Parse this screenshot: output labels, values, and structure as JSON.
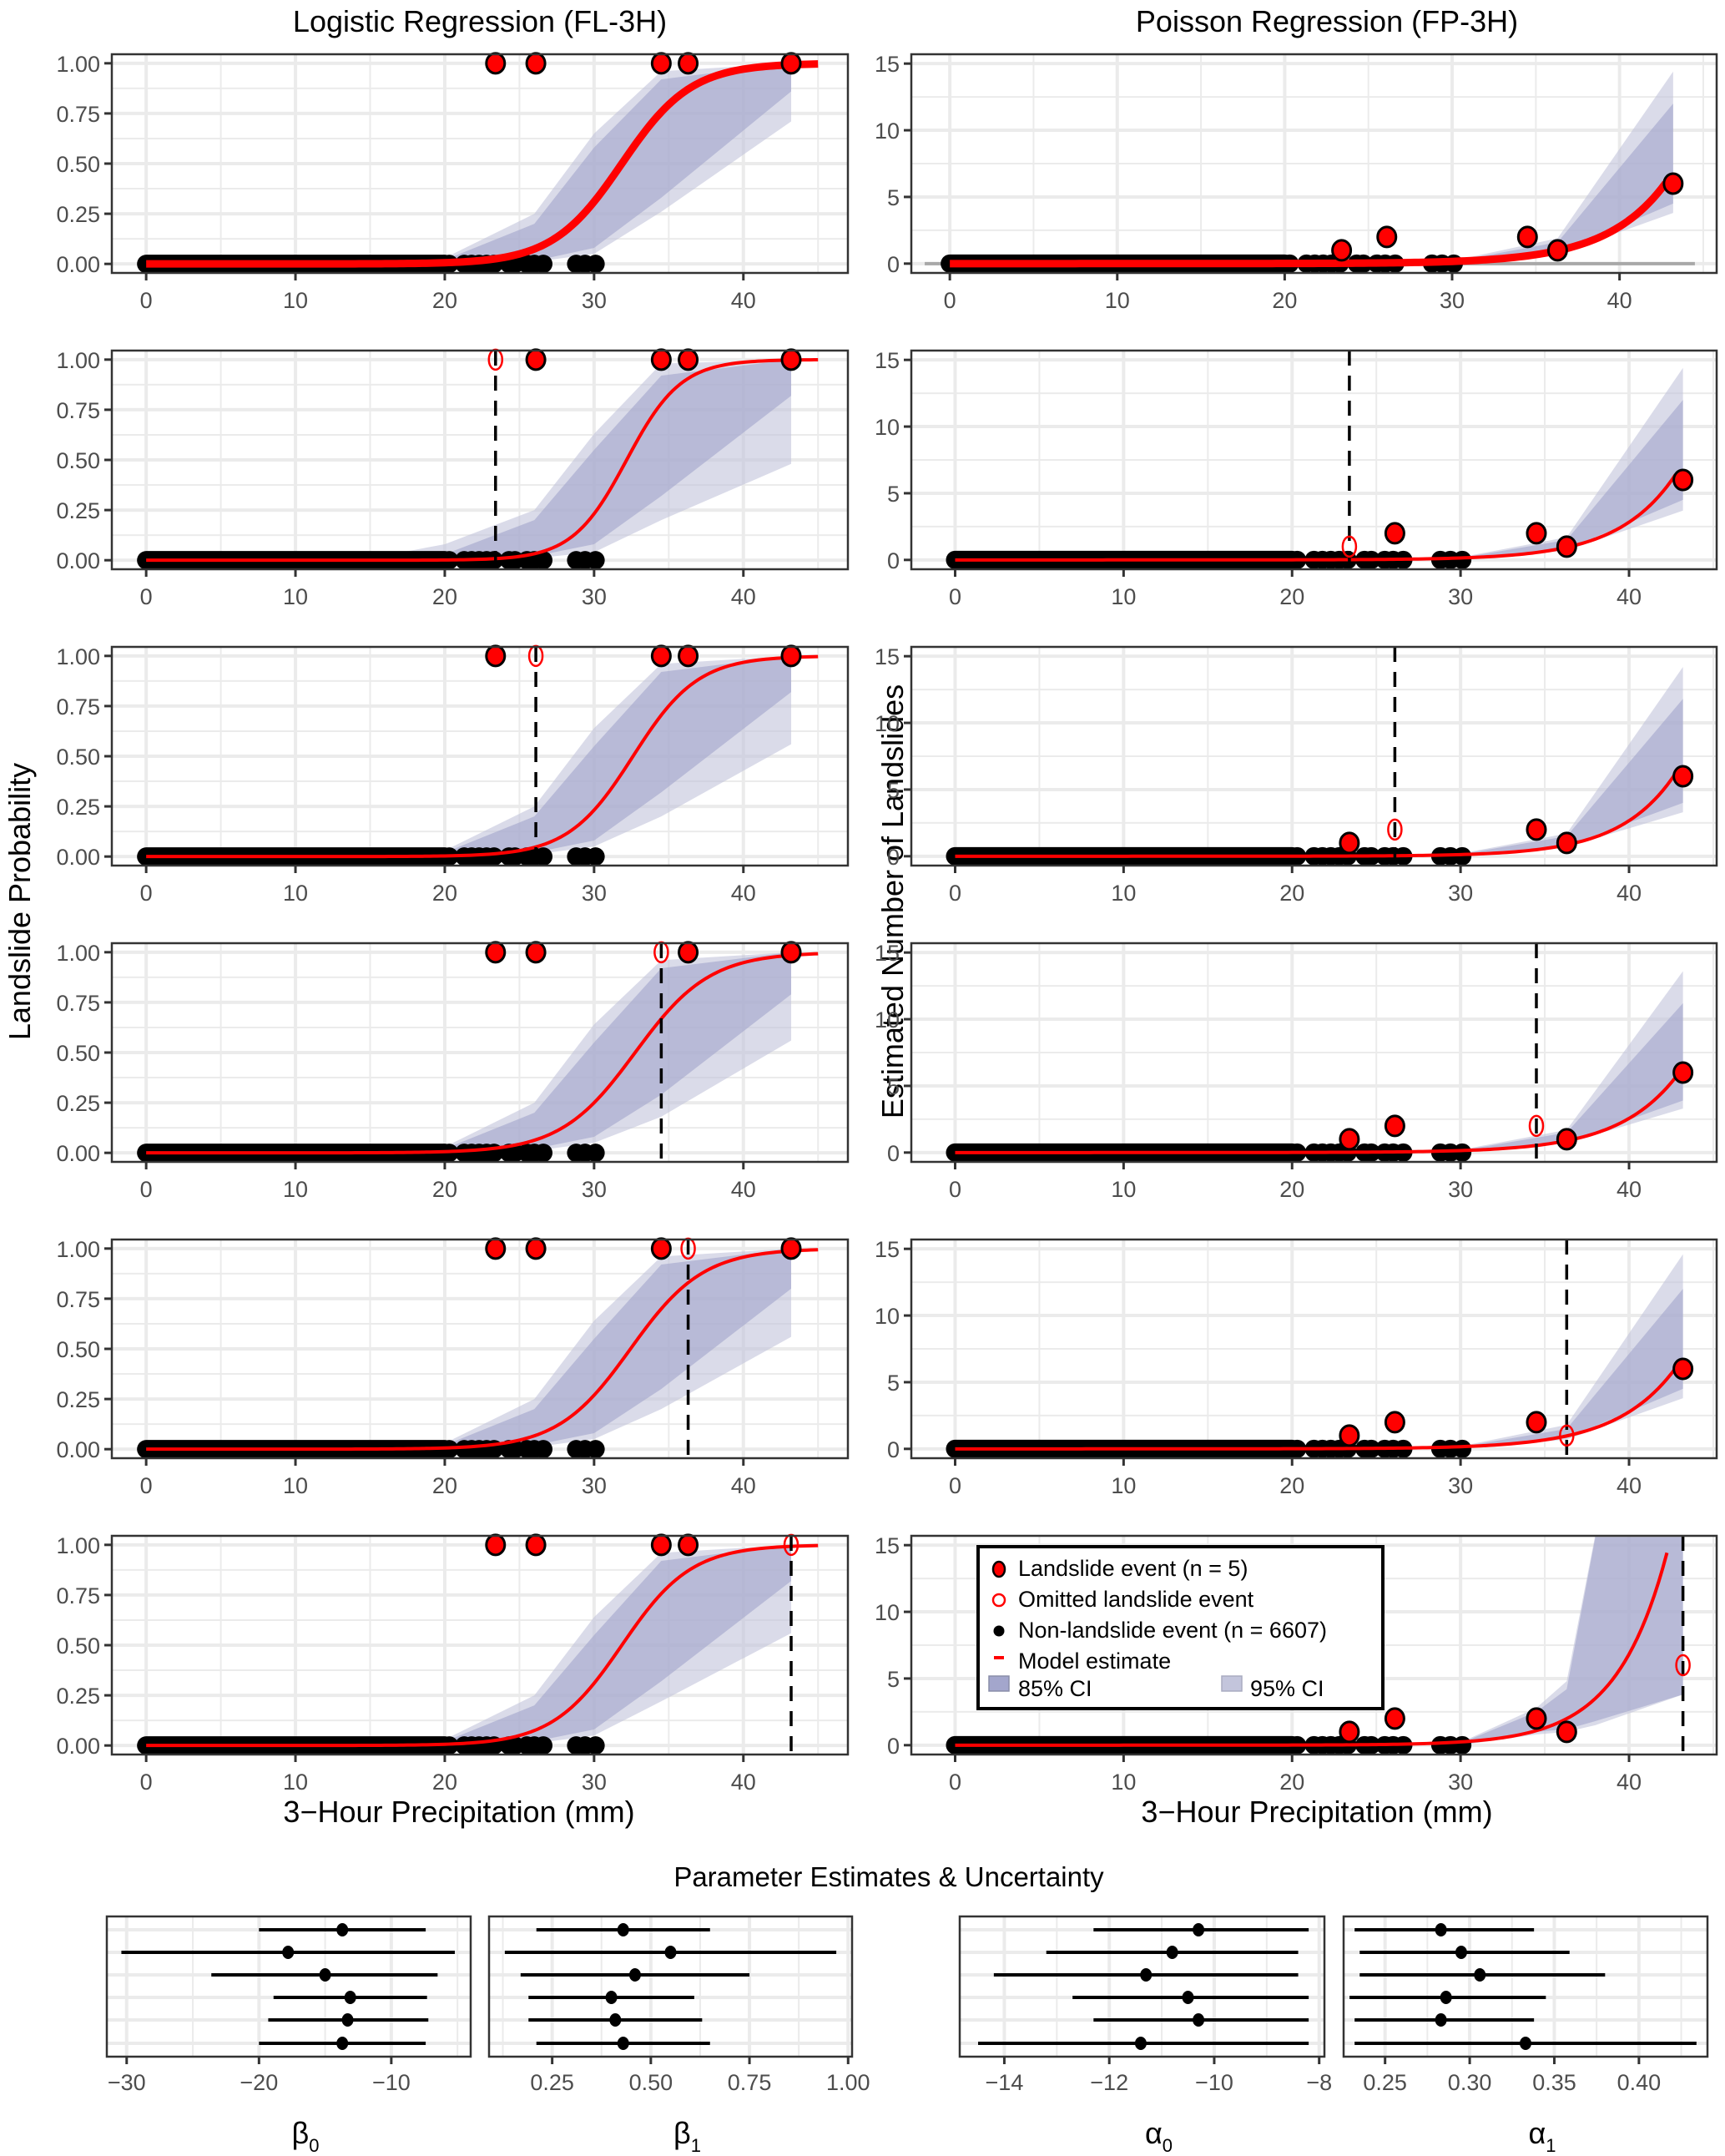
{
  "chart_data": {
    "type": "scatter",
    "figure": {
      "left_column_title": "Logistic Regression (FL-3H)",
      "right_column_title": "Poisson Regression (FP-3H)",
      "left_ylabel": "Landslide Probability",
      "right_ylabel": "Estimated Number of Landslides",
      "xlabel": "3−Hour Precipitation (mm)",
      "bottom_title": "Parameter Estimates & Uncertainty"
    },
    "colors": {
      "landslide": "#ff0000",
      "model": "#ff0000",
      "ci85": "#a3a6cc",
      "ci95": "#c3c5dc",
      "nonlandslide": "#000000",
      "grid": "#ebebeb",
      "reference": "#a8a8a8"
    },
    "x_ticks": [
      0,
      10,
      20,
      30,
      40
    ],
    "logistic_y_ticks": [
      "0.00",
      "0.25",
      "0.50",
      "0.75",
      "1.00"
    ],
    "poisson_y_ticks": [
      "0",
      "5",
      "10",
      "15"
    ],
    "logistic_xlim": [
      -2.3,
      47
    ],
    "logistic_ylim": [
      -0.045,
      1.045
    ],
    "poisson_xlim_first": [
      -2.3,
      45.8
    ],
    "poisson_xlim": [
      -2.6,
      45.2
    ],
    "poisson_ylim": [
      -0.7,
      15.7
    ],
    "landslide_events": [
      {
        "precip": 23.4,
        "count": 1
      },
      {
        "precip": 26.1,
        "count": 2
      },
      {
        "precip": 34.5,
        "count": 2
      },
      {
        "precip": 36.3,
        "count": 1
      },
      {
        "precip": 43.2,
        "count": 6
      }
    ],
    "nonlandslide_precip_range": [
      0,
      30.3
    ],
    "nonlandslide_sparse_points": [
      20.3,
      21.3,
      21.8,
      22.3,
      22.8,
      23.3,
      24.3,
      24.7,
      25.5,
      26.0,
      26.6,
      28.8,
      29.4,
      30.1
    ],
    "logistic_panels": [
      {
        "omitted_index": null,
        "beta0": -13.7,
        "beta1": 0.43,
        "ci85": [
          [
            20,
            0.0,
            0.02
          ],
          [
            26,
            0.015,
            0.2
          ],
          [
            30,
            0.08,
            0.58
          ],
          [
            34.5,
            0.33,
            0.92
          ],
          [
            43.2,
            0.86,
            1.0
          ]
        ],
        "ci95": [
          [
            20,
            0.0,
            0.03
          ],
          [
            26,
            0.01,
            0.25
          ],
          [
            30,
            0.05,
            0.65
          ],
          [
            34.5,
            0.26,
            0.96
          ],
          [
            43.2,
            0.71,
            1.0
          ]
        ]
      },
      {
        "omitted_index": 0,
        "beta0": -17.7,
        "beta1": 0.55,
        "ci85": [
          [
            20,
            0.0,
            0.03
          ],
          [
            26,
            0.02,
            0.2
          ],
          [
            30,
            0.08,
            0.55
          ],
          [
            34.5,
            0.32,
            0.92
          ],
          [
            43.2,
            0.82,
            1.0
          ]
        ],
        "ci95": [
          [
            15,
            0.0,
            0.01
          ],
          [
            20,
            0.0,
            0.08
          ],
          [
            26,
            0.01,
            0.25
          ],
          [
            30,
            0.04,
            0.63
          ],
          [
            34.5,
            0.2,
            0.98
          ],
          [
            43.2,
            0.48,
            1.0
          ]
        ]
      },
      {
        "omitted_index": 1,
        "beta0": -15.0,
        "beta1": 0.46,
        "ci85": [
          [
            20,
            0.0,
            0.02
          ],
          [
            26,
            0.02,
            0.2
          ],
          [
            30,
            0.08,
            0.55
          ],
          [
            34.5,
            0.32,
            0.92
          ],
          [
            43.2,
            0.82,
            1.0
          ]
        ],
        "ci95": [
          [
            20,
            0.0,
            0.03
          ],
          [
            26,
            0.01,
            0.25
          ],
          [
            30,
            0.05,
            0.64
          ],
          [
            34.5,
            0.2,
            0.96
          ],
          [
            43.2,
            0.56,
            1.0
          ]
        ]
      },
      {
        "omitted_index": 2,
        "beta0": -13.1,
        "beta1": 0.4,
        "ci85": [
          [
            20,
            0.0,
            0.02
          ],
          [
            26,
            0.02,
            0.2
          ],
          [
            30,
            0.08,
            0.55
          ],
          [
            34.5,
            0.29,
            0.92
          ],
          [
            43.2,
            0.79,
            1.0
          ]
        ],
        "ci95": [
          [
            20,
            0.0,
            0.03
          ],
          [
            26,
            0.01,
            0.25
          ],
          [
            30,
            0.05,
            0.64
          ],
          [
            34.5,
            0.18,
            0.96
          ],
          [
            43.2,
            0.56,
            1.0
          ]
        ]
      },
      {
        "omitted_index": 3,
        "beta0": -13.3,
        "beta1": 0.41,
        "ci85": [
          [
            20,
            0.0,
            0.02
          ],
          [
            26,
            0.02,
            0.2
          ],
          [
            30,
            0.08,
            0.55
          ],
          [
            34.5,
            0.3,
            0.92
          ],
          [
            43.2,
            0.8,
            1.0
          ]
        ],
        "ci95": [
          [
            20,
            0.0,
            0.03
          ],
          [
            26,
            0.01,
            0.25
          ],
          [
            30,
            0.05,
            0.64
          ],
          [
            34.5,
            0.2,
            0.96
          ],
          [
            43.2,
            0.56,
            1.0
          ]
        ]
      },
      {
        "omitted_index": 4,
        "beta0": -13.7,
        "beta1": 0.43,
        "ci85": [
          [
            20,
            0.0,
            0.02
          ],
          [
            26,
            0.02,
            0.2
          ],
          [
            30,
            0.08,
            0.55
          ],
          [
            34.5,
            0.32,
            0.92
          ],
          [
            43.2,
            0.82,
            1.0
          ]
        ],
        "ci95": [
          [
            20,
            0.0,
            0.03
          ],
          [
            26,
            0.01,
            0.25
          ],
          [
            30,
            0.05,
            0.64
          ],
          [
            34.5,
            0.22,
            0.96
          ],
          [
            43.2,
            0.56,
            1.0
          ]
        ]
      }
    ],
    "poisson_panels": [
      {
        "omitted_index": null,
        "alpha0": -10.3,
        "alpha1": 0.283,
        "curve_xmax": 42.8,
        "ci85": [
          [
            30,
            0.0,
            0.15
          ],
          [
            36.3,
            0.8,
            1.6
          ],
          [
            43.2,
            4.5,
            12.0
          ]
        ],
        "ci95": [
          [
            30,
            0.0,
            0.2
          ],
          [
            36.3,
            0.7,
            1.9
          ],
          [
            43.2,
            3.8,
            14.4
          ]
        ]
      },
      {
        "omitted_index": 0,
        "alpha0": -10.8,
        "alpha1": 0.296,
        "curve_xmax": 42.8,
        "ci85": [
          [
            30,
            0.0,
            0.15
          ],
          [
            36.3,
            0.8,
            1.5
          ],
          [
            43.2,
            4.5,
            12.0
          ]
        ],
        "ci95": [
          [
            30,
            0.0,
            0.2
          ],
          [
            36.3,
            0.7,
            1.7
          ],
          [
            43.2,
            3.7,
            14.4
          ]
        ]
      },
      {
        "omitted_index": 1,
        "alpha0": -11.3,
        "alpha1": 0.307,
        "curve_xmax": 43.2,
        "ci85": [
          [
            30,
            0.0,
            0.15
          ],
          [
            36.3,
            0.8,
            1.5
          ],
          [
            43.2,
            4.0,
            11.8
          ]
        ],
        "ci95": [
          [
            30,
            0.0,
            0.2
          ],
          [
            36.3,
            0.7,
            1.7
          ],
          [
            43.2,
            3.3,
            14.2
          ]
        ]
      },
      {
        "omitted_index": 2,
        "alpha0": -10.5,
        "alpha1": 0.286,
        "curve_xmax": 43.2,
        "ci85": [
          [
            30,
            0.0,
            0.15
          ],
          [
            36.3,
            0.8,
            1.5
          ],
          [
            43.2,
            3.9,
            11.2
          ]
        ],
        "ci95": [
          [
            30,
            0.0,
            0.2
          ],
          [
            36.3,
            0.7,
            1.7
          ],
          [
            43.2,
            3.3,
            13.6
          ]
        ]
      },
      {
        "omitted_index": 3,
        "alpha0": -10.3,
        "alpha1": 0.283,
        "curve_xmax": 42.8,
        "ci85": [
          [
            30,
            0.0,
            0.15
          ],
          [
            36.3,
            0.8,
            1.5
          ],
          [
            43.2,
            4.5,
            12.0
          ]
        ],
        "ci95": [
          [
            30,
            0.0,
            0.2
          ],
          [
            36.3,
            0.7,
            1.8
          ],
          [
            43.2,
            3.8,
            14.6
          ]
        ]
      },
      {
        "omitted_index": 4,
        "alpha0": -11.4,
        "alpha1": 0.333,
        "curve_xmax": 42.3,
        "ci85": [
          [
            30,
            0.0,
            0.15
          ],
          [
            34.5,
            1.0,
            2.5
          ],
          [
            36.3,
            1.2,
            4.2
          ],
          [
            38,
            1.8,
            15.6
          ],
          [
            43.2,
            3.8,
            15.6
          ]
        ],
        "ci95": [
          [
            30,
            0.0,
            0.2
          ],
          [
            34.5,
            0.8,
            2.8
          ],
          [
            36.3,
            1.0,
            4.8
          ],
          [
            38,
            1.5,
            15.8
          ],
          [
            43.2,
            3.8,
            15.8
          ]
        ]
      }
    ],
    "legend": {
      "items": [
        {
          "label": "Landslide event (n = 5)",
          "symbol": "filled-circle"
        },
        {
          "label": "Omitted landslide event",
          "symbol": "open-circle"
        },
        {
          "label": "Non-landslide event (n = 6607)",
          "symbol": "black-dot"
        },
        {
          "label": "Model estimate",
          "symbol": "line"
        },
        {
          "label": "85% CI",
          "symbol": "ci85"
        },
        {
          "label": "95% CI",
          "symbol": "ci95"
        }
      ],
      "placement": "top-left of bottom-right panel"
    },
    "parameter_panels": [
      {
        "name": "beta0",
        "label": "β",
        "subscript": "0",
        "xlim": [
          -31.5,
          -4.0
        ],
        "ticks": [
          -30,
          -20,
          -10
        ],
        "tick_labels": [
          "−30",
          "−20",
          "−10"
        ],
        "minor": [
          -25,
          -15,
          -5
        ],
        "rows": [
          {
            "est": -13.7,
            "lo": -20.0,
            "hi": -7.4
          },
          {
            "est": -17.8,
            "lo": -30.4,
            "hi": -5.2
          },
          {
            "est": -15.0,
            "lo": -23.6,
            "hi": -6.5
          },
          {
            "est": -13.1,
            "lo": -18.9,
            "hi": -7.3
          },
          {
            "est": -13.3,
            "lo": -19.3,
            "hi": -7.2
          },
          {
            "est": -13.7,
            "lo": -20.0,
            "hi": -7.4
          }
        ]
      },
      {
        "name": "beta1",
        "label": "β",
        "subscript": "1",
        "xlim": [
          0.09,
          1.01
        ],
        "ticks": [
          0.25,
          0.5,
          0.75,
          1.0
        ],
        "tick_labels": [
          "0.25",
          "0.50",
          "0.75",
          "1.00"
        ],
        "minor": [
          0.125,
          0.375,
          0.625,
          0.875
        ],
        "rows": [
          {
            "est": 0.43,
            "lo": 0.21,
            "hi": 0.65
          },
          {
            "est": 0.55,
            "lo": 0.13,
            "hi": 0.97
          },
          {
            "est": 0.46,
            "lo": 0.17,
            "hi": 0.75
          },
          {
            "est": 0.4,
            "lo": 0.19,
            "hi": 0.61
          },
          {
            "est": 0.41,
            "lo": 0.19,
            "hi": 0.63
          },
          {
            "est": 0.43,
            "lo": 0.21,
            "hi": 0.65
          }
        ]
      },
      {
        "name": "alpha0",
        "label": "α",
        "subscript": "0",
        "xlim": [
          -14.85,
          -7.9
        ],
        "ticks": [
          -14,
          -12,
          -10,
          -8
        ],
        "tick_labels": [
          "−14",
          "−12",
          "−10",
          "−8"
        ],
        "minor": [
          -13,
          -11,
          -9
        ],
        "rows": [
          {
            "est": -10.3,
            "lo": -12.3,
            "hi": -8.2
          },
          {
            "est": -10.8,
            "lo": -13.2,
            "hi": -8.4
          },
          {
            "est": -11.3,
            "lo": -14.2,
            "hi": -8.4
          },
          {
            "est": -10.5,
            "lo": -12.7,
            "hi": -8.2
          },
          {
            "est": -10.3,
            "lo": -12.3,
            "hi": -8.2
          },
          {
            "est": -11.4,
            "lo": -14.5,
            "hi": -8.2
          }
        ]
      },
      {
        "name": "alpha1",
        "label": "α",
        "subscript": "1",
        "xlim": [
          0.2255,
          0.4405
        ],
        "ticks": [
          0.25,
          0.3,
          0.35,
          0.4
        ],
        "tick_labels": [
          "0.25",
          "0.30",
          "0.35",
          "0.40"
        ],
        "minor": [
          0.275,
          0.325,
          0.375,
          0.425
        ],
        "rows": [
          {
            "est": 0.283,
            "lo": 0.232,
            "hi": 0.338
          },
          {
            "est": 0.295,
            "lo": 0.235,
            "hi": 0.359
          },
          {
            "est": 0.306,
            "lo": 0.235,
            "hi": 0.38
          },
          {
            "est": 0.286,
            "lo": 0.229,
            "hi": 0.345
          },
          {
            "est": 0.283,
            "lo": 0.232,
            "hi": 0.338
          },
          {
            "est": 0.333,
            "lo": 0.232,
            "hi": 0.434
          }
        ]
      }
    ]
  }
}
